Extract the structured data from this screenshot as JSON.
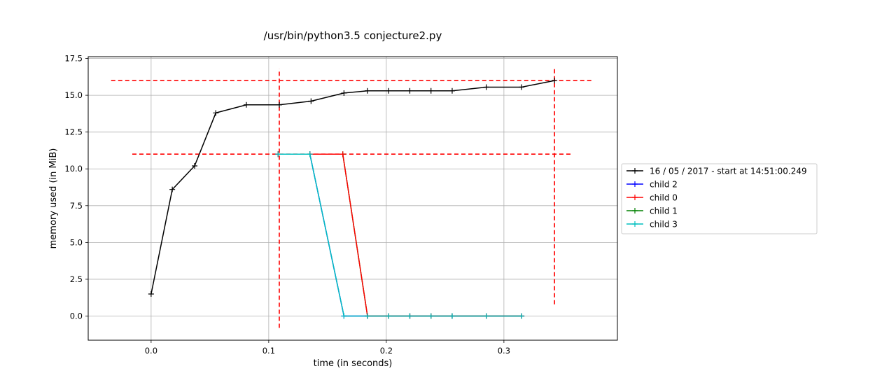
{
  "chart_data": {
    "type": "line",
    "title": "/usr/bin/python3.5 conjecture2.py",
    "xlabel": "time (in seconds)",
    "ylabel": "memory used (in MiB)",
    "xlim": [
      -0.0535,
      0.3965
    ],
    "ylim": [
      -1.64,
      17.62
    ],
    "xticks": [
      0.0,
      0.1,
      0.2,
      0.3
    ],
    "xtick_labels": [
      "0.0",
      "0.1",
      "0.2",
      "0.3"
    ],
    "yticks": [
      0.0,
      2.5,
      5.0,
      7.5,
      10.0,
      12.5,
      15.0,
      17.5
    ],
    "ytick_labels": [
      "0.0",
      "2.5",
      "5.0",
      "7.5",
      "10.0",
      "12.5",
      "15.0",
      "17.5"
    ],
    "grid": true,
    "legend_position": "center-right outside",
    "series": [
      {
        "name": "16 / 05 / 2017 - start at 14:51:00.249",
        "color": "#000000",
        "x": [
          0.0,
          0.018,
          0.037,
          0.055,
          0.081,
          0.109,
          0.136,
          0.164,
          0.184,
          0.202,
          0.22,
          0.238,
          0.256,
          0.285,
          0.315,
          0.343
        ],
        "y": [
          1.5,
          8.6,
          10.2,
          13.8,
          14.35,
          14.35,
          14.6,
          15.15,
          15.3,
          15.3,
          15.3,
          15.3,
          15.3,
          15.55,
          15.55,
          16.0
        ]
      },
      {
        "name": "child 2",
        "color": "#0000ff",
        "x": [
          0.108,
          0.135,
          0.164,
          0.184,
          0.202,
          0.22,
          0.238,
          0.256,
          0.285,
          0.315
        ],
        "y": [
          11.0,
          11.0,
          0.0,
          0.0,
          0.0,
          0.0,
          0.0,
          0.0,
          0.0,
          0.0
        ]
      },
      {
        "name": "child 0",
        "color": "#ff0000",
        "x": [
          0.108,
          0.135,
          0.163,
          0.184,
          0.202,
          0.22,
          0.238,
          0.256,
          0.285,
          0.315
        ],
        "y": [
          11.0,
          11.0,
          11.0,
          0.0,
          0.0,
          0.0,
          0.0,
          0.0,
          0.0,
          0.0
        ]
      },
      {
        "name": "child 1",
        "color": "#008000",
        "x": [
          0.108,
          0.135,
          0.163,
          0.184,
          0.202,
          0.22,
          0.238,
          0.256,
          0.285,
          0.315
        ],
        "y": [
          11.0,
          11.0,
          11.0,
          0.0,
          0.0,
          0.0,
          0.0,
          0.0,
          0.0,
          0.0
        ]
      },
      {
        "name": "child 3",
        "color": "#00bfbf",
        "x": [
          0.108,
          0.135,
          0.164,
          0.184,
          0.202,
          0.22,
          0.238,
          0.256,
          0.285,
          0.315
        ],
        "y": [
          11.0,
          11.0,
          0.0,
          0.0,
          0.0,
          0.0,
          0.0,
          0.0,
          0.0,
          0.0
        ]
      }
    ],
    "reference_lines": [
      {
        "orientation": "horizontal",
        "y": 16.0,
        "x_from": -0.034,
        "x_to": 0.376,
        "color": "#ff0000",
        "style": "dashed"
      },
      {
        "orientation": "horizontal",
        "y": 11.0,
        "x_from": -0.016,
        "x_to": 0.358,
        "color": "#ff0000",
        "style": "dashed"
      },
      {
        "orientation": "vertical",
        "x": 0.109,
        "y_from": -0.8,
        "y_to": 16.8,
        "color": "#ff0000",
        "style": "dashed"
      },
      {
        "orientation": "vertical",
        "x": 0.343,
        "y_from": 0.8,
        "y_to": 16.8,
        "color": "#ff0000",
        "style": "dashed"
      }
    ]
  }
}
